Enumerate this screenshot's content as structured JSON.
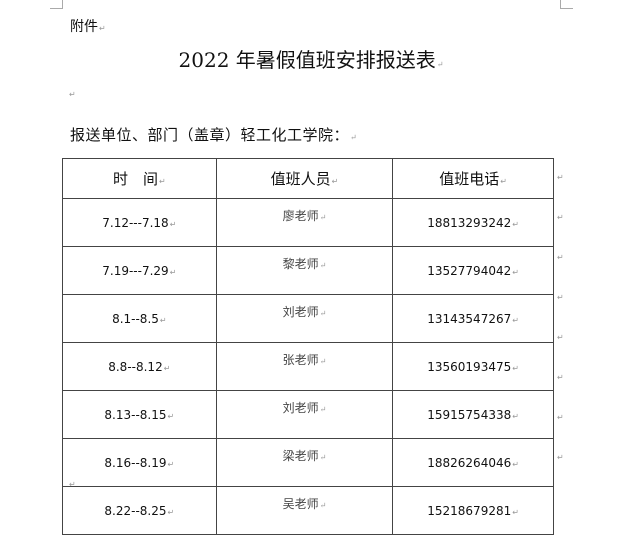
{
  "annex_label": "附件",
  "title": "2022 年暑假值班安排报送表",
  "unit_line": "报送单位、部门（盖章）轻工化工学院：",
  "table": {
    "headers": [
      "时　间",
      "值班人员",
      "值班电话"
    ],
    "rows": [
      [
        "7.12---7.18",
        "廖老师",
        "18813293242"
      ],
      [
        "7.19---7.29",
        "黎老师",
        "13527794042"
      ],
      [
        "8.1--8.5",
        "刘老师",
        "13143547267"
      ],
      [
        "8.8--8.12",
        "张老师",
        "13560193475"
      ],
      [
        "8.13--8.15",
        "刘老师",
        "15915754338"
      ],
      [
        "8.16--8.19",
        "梁老师",
        "18826264046"
      ],
      [
        "8.22--8.25",
        "吴老师",
        "15218679281"
      ]
    ]
  },
  "paragraph_mark": "↵"
}
